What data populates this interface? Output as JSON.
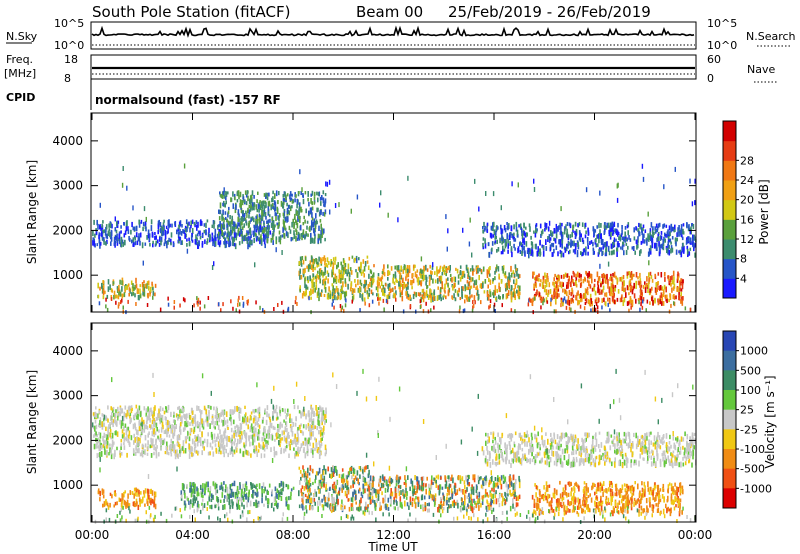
{
  "header": {
    "station": "South Pole Station (fitACF)",
    "beam": "Beam 00",
    "dates": "25/Feb/2019 - 26/Feb/2019"
  },
  "strips": {
    "nsky_label": "N.Sky",
    "nsky_top": "10^5",
    "nsky_bottom": "10^0",
    "nsearch_label": "N.Search",
    "nsearch_top": "10^5",
    "nsearch_bottom": "10^0",
    "freq_label_1": "Freq.",
    "freq_label_2": "[MHz]",
    "freq_top": "18",
    "freq_bottom": "8",
    "nave_label": "Nave",
    "nave_top": "60",
    "nave_bottom": "0",
    "cpid_label": "CPID",
    "cpid_value": "normalsound (fast) -157 RF"
  },
  "chart_data": [
    {
      "type": "heatmap",
      "panel": "power",
      "ylabel": "Slant Range [km]",
      "ylim": [
        200,
        4600
      ],
      "yticks": [
        "1000",
        "2000",
        "3000",
        "4000"
      ],
      "xlim": [
        0,
        24
      ],
      "xtick_labels": [
        "00:00",
        "04:00",
        "08:00",
        "12:00",
        "16:00",
        "20:00",
        "00:00"
      ],
      "colorbar_title": "Power [dB]",
      "colorbar_ticks": [
        "4",
        "8",
        "12",
        "16",
        "20",
        "24",
        "28"
      ],
      "colorbar_colors": [
        "#1a1aff",
        "#2655c8",
        "#3c8c6e",
        "#5aa03c",
        "#d2c814",
        "#f0a014",
        "#f07814",
        "#e63c14",
        "#d20000"
      ],
      "bands": [
        {
          "t0": 0.2,
          "t1": 2.5,
          "r0": 550,
          "r1": 950,
          "level": "medium-high"
        },
        {
          "t0": 0.0,
          "t1": 7.2,
          "r0": 1700,
          "r1": 2250,
          "level": "low"
        },
        {
          "t0": 5.0,
          "t1": 9.3,
          "r0": 1800,
          "r1": 2900,
          "level": "low-medium"
        },
        {
          "t0": 8.2,
          "t1": 11.0,
          "r0": 500,
          "r1": 1450,
          "level": "medium"
        },
        {
          "t0": 11.0,
          "t1": 17.0,
          "r0": 500,
          "r1": 1250,
          "level": "medium-high"
        },
        {
          "t0": 17.5,
          "t1": 23.5,
          "r0": 400,
          "r1": 1100,
          "level": "high"
        },
        {
          "t0": 15.5,
          "t1": 24.0,
          "r0": 1500,
          "r1": 2200,
          "level": "low"
        }
      ]
    },
    {
      "type": "heatmap",
      "panel": "velocity",
      "ylabel": "Slant Range [km]",
      "ylim": [
        200,
        4600
      ],
      "yticks": [
        "1000",
        "2000",
        "3000",
        "4000"
      ],
      "xlim": [
        0,
        24
      ],
      "xtick_labels": [
        "00:00",
        "04:00",
        "08:00",
        "12:00",
        "16:00",
        "20:00",
        "00:00"
      ],
      "xlabel": "Time UT",
      "colorbar_title": "Velocity [m s⁻¹]",
      "colorbar_ticks": [
        "1000",
        "500",
        "100",
        "25",
        "-25",
        "-100",
        "-500",
        "-1000"
      ],
      "colorbar_colors": [
        "#2846b4",
        "#3c6ea0",
        "#3c8c64",
        "#64c83c",
        "#c8c8c8",
        "#f0c814",
        "#f08c14",
        "#f05014",
        "#dc0000"
      ],
      "bands": [
        {
          "t0": 0.2,
          "t1": 2.5,
          "r0": 550,
          "r1": 950,
          "level": "receding"
        },
        {
          "t0": 0.0,
          "t1": 9.3,
          "r0": 1700,
          "r1": 2800,
          "level": "near-zero"
        },
        {
          "t0": 3.5,
          "t1": 8.0,
          "r0": 550,
          "r1": 1100,
          "level": "approaching"
        },
        {
          "t0": 8.2,
          "t1": 11.0,
          "r0": 500,
          "r1": 1450,
          "level": "mixed"
        },
        {
          "t0": 11.0,
          "t1": 17.0,
          "r0": 500,
          "r1": 1250,
          "level": "mixed"
        },
        {
          "t0": 17.5,
          "t1": 23.5,
          "r0": 400,
          "r1": 1100,
          "level": "receding"
        },
        {
          "t0": 15.5,
          "t1": 24.0,
          "r0": 1500,
          "r1": 2200,
          "level": "near-zero"
        }
      ]
    }
  ]
}
